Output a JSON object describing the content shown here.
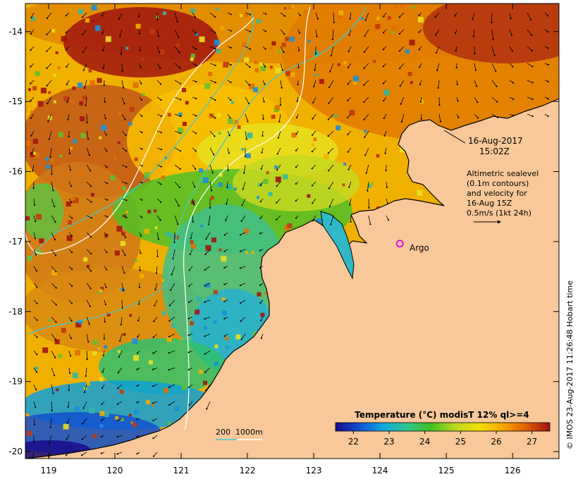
{
  "map": {
    "lon_range": [
      118.65,
      126.7
    ],
    "lat_range": [
      -20.1,
      -13.6
    ],
    "lon_ticks": [
      119,
      120,
      121,
      122,
      123,
      124,
      125,
      126
    ],
    "lat_ticks": [
      -14,
      -15,
      -16,
      -17,
      -18,
      -19,
      -20
    ],
    "date_label": "16-Aug-2017",
    "time_label": "15:02Z",
    "altimetry_lines": [
      "Altimetric sealevel",
      "(0.1m contours)",
      "and velocity for",
      "16-Aug 15Z",
      "0.5m/s (1kt 24h)"
    ],
    "argo_label": "Argo",
    "argo_position": {
      "lon": 124.3,
      "lat": -17.03
    },
    "depth_legend": "200  1000m",
    "credit": "© IMOS 23-Aug-2017 11:26:48 Hobart time",
    "colors": {
      "land": "#f8c89a",
      "argo": "#e010e0",
      "contour_200": "#40c8d0",
      "contour_1000": "#ffffff",
      "coast": "#000000"
    }
  },
  "colorbar": {
    "title": "Temperature (°C) modisT 12% ql>=4",
    "ticks": [
      22,
      23,
      24,
      25,
      26,
      27
    ],
    "range": [
      21.5,
      27.5
    ],
    "stops": [
      "#1a0a8a",
      "#1050d0",
      "#10a8e0",
      "#30c890",
      "#40c020",
      "#b8d820",
      "#f0e000",
      "#f8a800",
      "#e06000",
      "#a01010"
    ]
  }
}
